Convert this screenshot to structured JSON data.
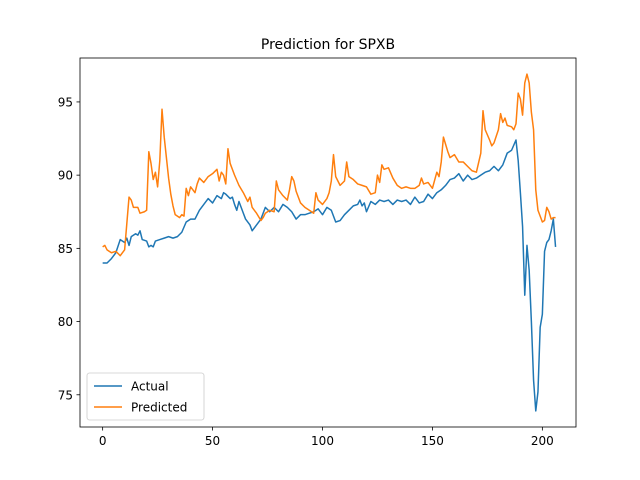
{
  "chart_data": {
    "type": "line",
    "title": "Prediction for SPXB",
    "xlabel": "",
    "ylabel": "",
    "xlim": [
      -10.3,
      215.3
    ],
    "ylim": [
      72.8,
      98.0
    ],
    "xticks": [
      0,
      50,
      100,
      150,
      200
    ],
    "yticks": [
      75,
      80,
      85,
      90,
      95
    ],
    "grid": false,
    "legend_position": "lower-left",
    "series": [
      {
        "name": "Actual",
        "color": "#1f77b4",
        "points": [
          [
            0,
            84.0
          ],
          [
            2,
            84.0
          ],
          [
            4,
            84.3
          ],
          [
            6,
            84.7
          ],
          [
            8,
            85.6
          ],
          [
            10,
            85.4
          ],
          [
            11,
            85.7
          ],
          [
            12,
            85.2
          ],
          [
            13,
            85.8
          ],
          [
            15,
            86.0
          ],
          [
            16,
            85.9
          ],
          [
            17,
            86.2
          ],
          [
            18,
            85.6
          ],
          [
            20,
            85.5
          ],
          [
            21,
            85.1
          ],
          [
            22,
            85.2
          ],
          [
            23,
            85.1
          ],
          [
            24,
            85.5
          ],
          [
            26,
            85.6
          ],
          [
            28,
            85.7
          ],
          [
            30,
            85.8
          ],
          [
            32,
            85.7
          ],
          [
            34,
            85.8
          ],
          [
            36,
            86.1
          ],
          [
            38,
            86.8
          ],
          [
            40,
            87.0
          ],
          [
            42,
            87.0
          ],
          [
            44,
            87.6
          ],
          [
            46,
            88.0
          ],
          [
            48,
            88.4
          ],
          [
            50,
            88.1
          ],
          [
            52,
            88.6
          ],
          [
            54,
            88.4
          ],
          [
            55,
            88.8
          ],
          [
            56,
            88.7
          ],
          [
            58,
            88.4
          ],
          [
            59,
            88.5
          ],
          [
            60,
            88.0
          ],
          [
            61,
            87.6
          ],
          [
            62,
            88.2
          ],
          [
            64,
            87.4
          ],
          [
            65,
            87.0
          ],
          [
            67,
            86.6
          ],
          [
            68,
            86.2
          ],
          [
            70,
            86.6
          ],
          [
            72,
            87.0
          ],
          [
            74,
            87.8
          ],
          [
            76,
            87.5
          ],
          [
            78,
            87.8
          ],
          [
            80,
            87.5
          ],
          [
            82,
            88.0
          ],
          [
            84,
            87.8
          ],
          [
            86,
            87.5
          ],
          [
            88,
            87.0
          ],
          [
            90,
            87.3
          ],
          [
            92,
            87.3
          ],
          [
            94,
            87.4
          ],
          [
            96,
            87.5
          ],
          [
            98,
            87.7
          ],
          [
            100,
            87.3
          ],
          [
            102,
            87.8
          ],
          [
            104,
            87.6
          ],
          [
            106,
            86.8
          ],
          [
            108,
            86.9
          ],
          [
            110,
            87.3
          ],
          [
            112,
            87.6
          ],
          [
            114,
            87.9
          ],
          [
            116,
            88.0
          ],
          [
            117,
            88.3
          ],
          [
            118,
            87.9
          ],
          [
            119,
            88.1
          ],
          [
            120,
            87.5
          ],
          [
            122,
            88.2
          ],
          [
            124,
            88.0
          ],
          [
            126,
            88.3
          ],
          [
            128,
            88.2
          ],
          [
            130,
            88.3
          ],
          [
            132,
            88.0
          ],
          [
            134,
            88.3
          ],
          [
            136,
            88.2
          ],
          [
            138,
            88.3
          ],
          [
            140,
            88.0
          ],
          [
            142,
            88.5
          ],
          [
            144,
            88.1
          ],
          [
            146,
            88.2
          ],
          [
            148,
            88.7
          ],
          [
            150,
            88.4
          ],
          [
            152,
            88.8
          ],
          [
            154,
            89.0
          ],
          [
            156,
            89.3
          ],
          [
            158,
            89.7
          ],
          [
            160,
            89.8
          ],
          [
            162,
            90.1
          ],
          [
            164,
            89.6
          ],
          [
            166,
            90.0
          ],
          [
            168,
            89.7
          ],
          [
            170,
            89.8
          ],
          [
            172,
            90.0
          ],
          [
            174,
            90.2
          ],
          [
            176,
            90.3
          ],
          [
            178,
            90.6
          ],
          [
            180,
            90.3
          ],
          [
            182,
            90.7
          ],
          [
            184,
            91.5
          ],
          [
            186,
            91.7
          ],
          [
            188,
            92.4
          ],
          [
            189,
            91.0
          ],
          [
            190,
            88.8
          ],
          [
            191,
            86.5
          ],
          [
            192,
            81.8
          ],
          [
            193,
            85.2
          ],
          [
            194,
            83.5
          ],
          [
            195,
            80.0
          ],
          [
            196,
            76.0
          ],
          [
            197,
            73.9
          ],
          [
            198,
            75.2
          ],
          [
            199,
            79.6
          ],
          [
            200,
            80.5
          ],
          [
            201,
            84.8
          ],
          [
            202,
            85.4
          ],
          [
            203,
            85.6
          ],
          [
            204,
            86.2
          ],
          [
            205,
            87.0
          ],
          [
            206,
            85.1
          ]
        ]
      },
      {
        "name": "Predicted",
        "color": "#ff7f0e",
        "points": [
          [
            0,
            85.1
          ],
          [
            1,
            85.2
          ],
          [
            2,
            84.9
          ],
          [
            4,
            84.7
          ],
          [
            6,
            84.8
          ],
          [
            8,
            84.5
          ],
          [
            10,
            84.9
          ],
          [
            11,
            86.7
          ],
          [
            12,
            88.5
          ],
          [
            13,
            88.3
          ],
          [
            14,
            87.8
          ],
          [
            16,
            87.8
          ],
          [
            17,
            87.4
          ],
          [
            19,
            87.5
          ],
          [
            20,
            87.6
          ],
          [
            21,
            91.6
          ],
          [
            22,
            90.8
          ],
          [
            23,
            89.7
          ],
          [
            24,
            90.2
          ],
          [
            25,
            89.2
          ],
          [
            26,
            91.0
          ],
          [
            27,
            94.5
          ],
          [
            28,
            92.6
          ],
          [
            29,
            91.2
          ],
          [
            30,
            89.8
          ],
          [
            31,
            88.7
          ],
          [
            32,
            87.9
          ],
          [
            33,
            87.3
          ],
          [
            35,
            87.1
          ],
          [
            36,
            87.3
          ],
          [
            37,
            87.2
          ],
          [
            38,
            89.1
          ],
          [
            39,
            88.6
          ],
          [
            40,
            89.2
          ],
          [
            42,
            88.8
          ],
          [
            43,
            89.4
          ],
          [
            44,
            89.8
          ],
          [
            46,
            89.5
          ],
          [
            48,
            89.9
          ],
          [
            50,
            90.1
          ],
          [
            52,
            90.4
          ],
          [
            53,
            89.6
          ],
          [
            54,
            90.2
          ],
          [
            55,
            90.0
          ],
          [
            56,
            89.4
          ],
          [
            57,
            91.8
          ],
          [
            58,
            90.8
          ],
          [
            60,
            90.0
          ],
          [
            62,
            89.3
          ],
          [
            64,
            88.8
          ],
          [
            66,
            88.2
          ],
          [
            67,
            88.5
          ],
          [
            68,
            87.8
          ],
          [
            70,
            87.4
          ],
          [
            72,
            86.9
          ],
          [
            73,
            87.1
          ],
          [
            74,
            87.4
          ],
          [
            76,
            87.6
          ],
          [
            78,
            87.5
          ],
          [
            79,
            89.6
          ],
          [
            80,
            89.0
          ],
          [
            82,
            88.6
          ],
          [
            84,
            88.3
          ],
          [
            85,
            89.0
          ],
          [
            86,
            89.9
          ],
          [
            87,
            89.6
          ],
          [
            88,
            88.9
          ],
          [
            90,
            88.1
          ],
          [
            92,
            87.8
          ],
          [
            94,
            87.6
          ],
          [
            96,
            87.4
          ],
          [
            97,
            88.8
          ],
          [
            98,
            88.3
          ],
          [
            100,
            88.0
          ],
          [
            102,
            88.4
          ],
          [
            103,
            88.8
          ],
          [
            104,
            89.6
          ],
          [
            105,
            91.4
          ],
          [
            106,
            89.9
          ],
          [
            108,
            89.3
          ],
          [
            110,
            89.6
          ],
          [
            111,
            90.9
          ],
          [
            112,
            89.9
          ],
          [
            114,
            89.7
          ],
          [
            116,
            89.4
          ],
          [
            118,
            89.3
          ],
          [
            120,
            89.2
          ],
          [
            122,
            88.7
          ],
          [
            124,
            88.8
          ],
          [
            125,
            90.0
          ],
          [
            126,
            89.5
          ],
          [
            127,
            90.7
          ],
          [
            128,
            90.4
          ],
          [
            130,
            90.5
          ],
          [
            132,
            89.8
          ],
          [
            134,
            89.3
          ],
          [
            136,
            89.1
          ],
          [
            138,
            89.2
          ],
          [
            140,
            89.1
          ],
          [
            142,
            89.1
          ],
          [
            144,
            89.3
          ],
          [
            145,
            89.8
          ],
          [
            146,
            89.4
          ],
          [
            148,
            89.5
          ],
          [
            150,
            89.1
          ],
          [
            152,
            90.2
          ],
          [
            153,
            89.9
          ],
          [
            154,
            90.9
          ],
          [
            155,
            92.6
          ],
          [
            156,
            92.1
          ],
          [
            157,
            91.6
          ],
          [
            158,
            91.2
          ],
          [
            160,
            91.4
          ],
          [
            162,
            90.9
          ],
          [
            164,
            90.9
          ],
          [
            166,
            90.6
          ],
          [
            168,
            90.3
          ],
          [
            170,
            90.2
          ],
          [
            172,
            91.5
          ],
          [
            173,
            94.4
          ],
          [
            174,
            93.1
          ],
          [
            176,
            92.4
          ],
          [
            177,
            92.0
          ],
          [
            178,
            92.2
          ],
          [
            180,
            93.1
          ],
          [
            181,
            94.2
          ],
          [
            182,
            93.6
          ],
          [
            183,
            93.9
          ],
          [
            184,
            93.4
          ],
          [
            186,
            93.3
          ],
          [
            187,
            93.1
          ],
          [
            188,
            93.5
          ],
          [
            189,
            95.6
          ],
          [
            190,
            95.2
          ],
          [
            191,
            94.1
          ],
          [
            192,
            96.3
          ],
          [
            193,
            96.9
          ],
          [
            194,
            96.3
          ],
          [
            195,
            94.3
          ],
          [
            196,
            93.1
          ],
          [
            197,
            89.0
          ],
          [
            198,
            87.6
          ],
          [
            199,
            87.2
          ],
          [
            200,
            86.8
          ],
          [
            201,
            86.9
          ],
          [
            202,
            87.8
          ],
          [
            203,
            87.5
          ],
          [
            204,
            87.0
          ],
          [
            205,
            87.1
          ],
          [
            206,
            87.1
          ]
        ]
      }
    ]
  }
}
